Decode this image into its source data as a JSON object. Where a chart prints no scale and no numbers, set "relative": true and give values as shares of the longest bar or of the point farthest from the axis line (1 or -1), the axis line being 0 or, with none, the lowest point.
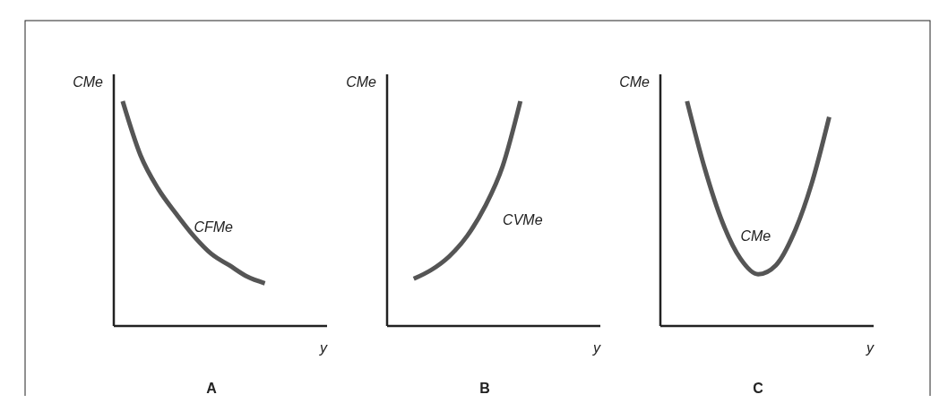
{
  "chart_data": [
    {
      "type": "line",
      "relative": true,
      "title": "A",
      "xlabel": "y",
      "ylabel": "CMe",
      "categories": [
        null,
        null,
        null,
        null,
        null,
        null,
        null,
        null,
        null,
        null,
        null,
        null
      ],
      "series": [
        {
          "name": "CFMe",
          "color": "#555555",
          "values": [
            1.0,
            0.76,
            0.61,
            0.5,
            0.4,
            0.32,
            0.27,
            0.22,
            0.19,
            null,
            null,
            null
          ]
        }
      ]
    },
    {
      "type": "line",
      "relative": true,
      "title": "B",
      "xlabel": "y",
      "ylabel": "CMe",
      "categories": [
        null,
        null,
        null,
        null,
        null,
        null,
        null,
        null,
        null,
        null,
        null,
        null
      ],
      "series": [
        {
          "name": "CVMe",
          "color": "#555555",
          "values": [
            null,
            0.21,
            0.25,
            0.31,
            0.4,
            0.53,
            0.71,
            1.0,
            null,
            null,
            null,
            null
          ]
        }
      ]
    },
    {
      "type": "line",
      "relative": true,
      "title": "C",
      "xlabel": "y",
      "ylabel": "CMe",
      "categories": [
        null,
        null,
        null,
        null,
        null,
        null,
        null,
        null,
        null,
        null,
        null,
        null
      ],
      "series": [
        {
          "name": "CMe",
          "color": "#555555",
          "values": [
            null,
            1.0,
            0.7,
            0.46,
            0.3,
            0.23,
            0.27,
            0.41,
            0.63,
            0.93,
            null,
            null
          ]
        }
      ]
    }
  ]
}
